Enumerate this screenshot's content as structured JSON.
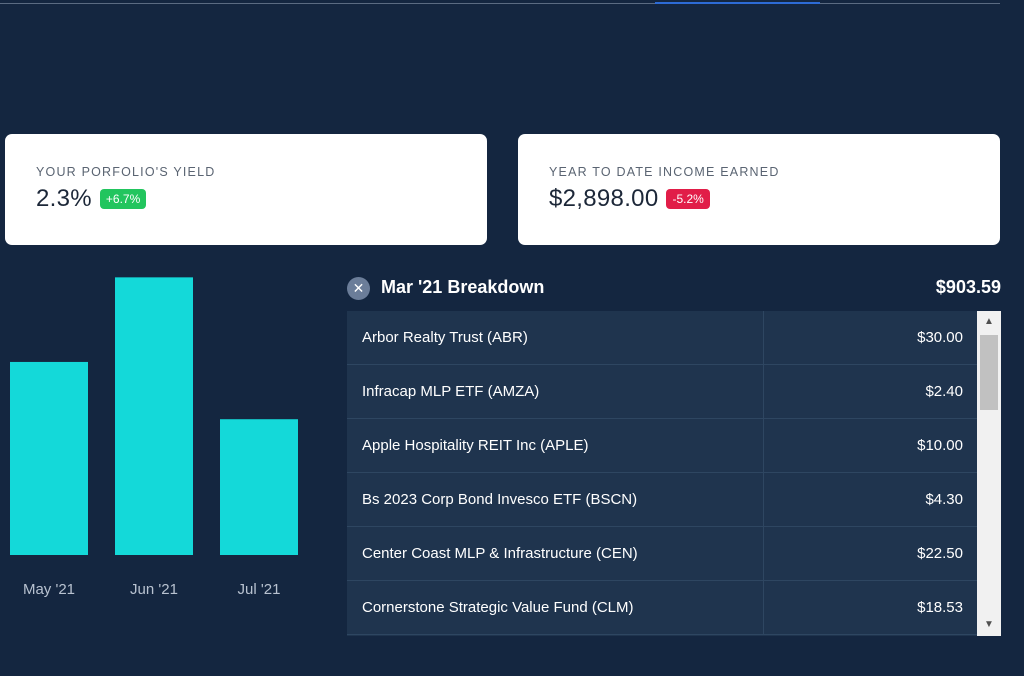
{
  "colors": {
    "background": "#142640",
    "bar": "#14d9d9",
    "positive": "#22c55e",
    "negative": "#e11d48",
    "table_bg": "#1f344e"
  },
  "yield_card": {
    "label": "YOUR PORFOLIO'S YIELD",
    "value": "2.3%",
    "change": "+6.7%"
  },
  "income_card": {
    "label": "YEAR TO DATE INCOME EARNED",
    "value": "$2,898.00",
    "change": "-5.2%"
  },
  "chart_data": {
    "type": "bar",
    "categories": [
      "May '21",
      "Jun '21",
      "Jul '21"
    ],
    "values": [
      445,
      640,
      313
    ],
    "ylim": [
      0,
      680
    ],
    "grid": false,
    "legend": "none"
  },
  "breakdown": {
    "close_icon": "close-icon",
    "title": "Mar '21 Breakdown",
    "total": "$903.59",
    "rows": [
      {
        "name": "Arbor Realty Trust (ABR)",
        "amount": "$30.00"
      },
      {
        "name": "Infracap MLP ETF (AMZA)",
        "amount": "$2.40"
      },
      {
        "name": "Apple Hospitality REIT Inc (APLE)",
        "amount": "$10.00"
      },
      {
        "name": "Bs 2023 Corp Bond Invesco ETF (BSCN)",
        "amount": "$4.30"
      },
      {
        "name": "Center Coast MLP & Infrastructure (CEN)",
        "amount": "$22.50"
      },
      {
        "name": "Cornerstone Strategic Value Fund (CLM)",
        "amount": "$18.53"
      }
    ]
  }
}
